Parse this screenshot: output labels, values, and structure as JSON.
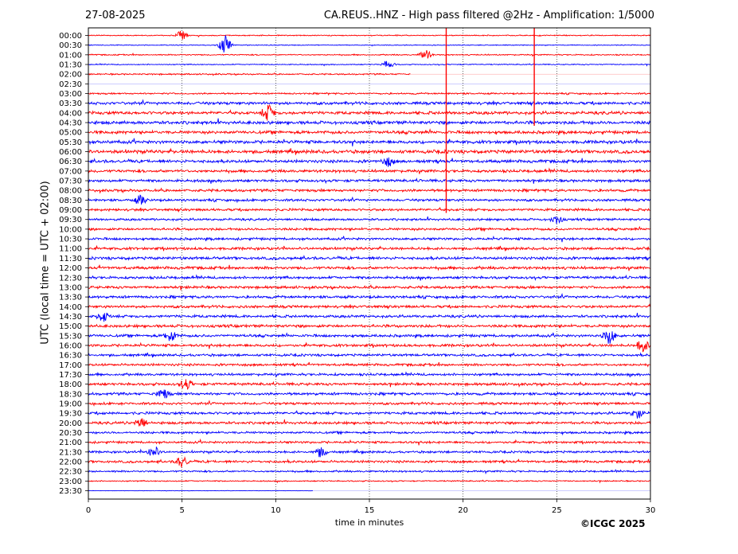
{
  "header": {
    "date": "27-08-2025",
    "title": "CA.REUS..HNZ - High pass filtered @2Hz - Amplification: 1/5000"
  },
  "footer": {
    "copyright": "©ICGC 2025"
  },
  "chart_data": {
    "type": "line",
    "title": "CA.REUS..HNZ - High pass filtered @2Hz - Amplification: 1/5000",
    "xlabel": "time in minutes",
    "ylabel": "UTC (local time = UTC + 02:00)",
    "xlim": [
      0,
      30
    ],
    "x_ticks": [
      0,
      5,
      10,
      15,
      20,
      25,
      30
    ],
    "grid": "vertical dotted lines at 5-minute intervals",
    "trace_colors": [
      "#ff0000",
      "#0000ff"
    ],
    "rows": [
      "00:00",
      "00:30",
      "01:00",
      "01:30",
      "02:00",
      "02:30",
      "03:00",
      "03:30",
      "04:00",
      "04:30",
      "05:00",
      "05:30",
      "06:00",
      "06:30",
      "07:00",
      "07:30",
      "08:00",
      "08:30",
      "09:00",
      "09:30",
      "10:00",
      "10:30",
      "11:00",
      "11:30",
      "12:00",
      "12:30",
      "13:00",
      "13:30",
      "14:00",
      "14:30",
      "15:00",
      "15:30",
      "16:00",
      "16:30",
      "17:00",
      "17:30",
      "18:00",
      "18:30",
      "19:00",
      "19:30",
      "20:00",
      "20:30",
      "21:00",
      "21:30",
      "22:00",
      "22:30",
      "23:00",
      "23:30"
    ],
    "row_noise_level": [
      0.5,
      0.4,
      0.6,
      0.5,
      0.7,
      0.0,
      0.8,
      1.4,
      1.5,
      1.6,
      1.5,
      1.6,
      1.7,
      1.5,
      1.4,
      1.3,
      1.3,
      1.2,
      1.2,
      1.1,
      1.2,
      1.2,
      1.3,
      1.4,
      1.4,
      1.3,
      1.3,
      1.3,
      1.3,
      1.3,
      1.4,
      1.3,
      1.3,
      1.2,
      1.2,
      1.2,
      1.3,
      1.3,
      1.2,
      1.3,
      1.3,
      1.1,
      1.1,
      1.1,
      1.2,
      0.9,
      0.6,
      0.2
    ],
    "row_data_end_minute": [
      30,
      30,
      30,
      30,
      17.2,
      0,
      30,
      30,
      30,
      30,
      30,
      30,
      30,
      30,
      30,
      30,
      30,
      30,
      30,
      30,
      30,
      30,
      30,
      30,
      30,
      30,
      30,
      30,
      30,
      30,
      30,
      30,
      30,
      30,
      30,
      30,
      30,
      30,
      30,
      30,
      30,
      30,
      30,
      30,
      30,
      30,
      30,
      12
    ],
    "events": [
      {
        "row": "00:00",
        "minute": 5.0,
        "amp": 1.3
      },
      {
        "row": "00:30",
        "minute": 7.3,
        "amp": 2.5
      },
      {
        "row": "01:00",
        "minute": 18.0,
        "amp": 1.2
      },
      {
        "row": "01:30",
        "minute": 16.0,
        "amp": 1.0
      },
      {
        "row": "04:00",
        "minute": 9.6,
        "amp": 2.0
      },
      {
        "row": "06:30",
        "minute": 16.0,
        "amp": 1.2
      },
      {
        "row": "08:30",
        "minute": 2.8,
        "amp": 1.2
      },
      {
        "row": "09:30",
        "minute": 25.0,
        "amp": 1.0
      },
      {
        "row": "14:30",
        "minute": 0.8,
        "amp": 1.3
      },
      {
        "row": "15:30",
        "minute": 4.4,
        "amp": 1.5
      },
      {
        "row": "15:30",
        "minute": 27.8,
        "amp": 2.0
      },
      {
        "row": "16:00",
        "minute": 29.6,
        "amp": 1.6
      },
      {
        "row": "18:00",
        "minute": 5.2,
        "amp": 1.4
      },
      {
        "row": "18:30",
        "minute": 4.0,
        "amp": 1.3
      },
      {
        "row": "19:30",
        "minute": 29.3,
        "amp": 1.3
      },
      {
        "row": "20:00",
        "minute": 2.8,
        "amp": 1.4
      },
      {
        "row": "21:30",
        "minute": 3.5,
        "amp": 1.6
      },
      {
        "row": "21:30",
        "minute": 12.4,
        "amp": 1.2
      },
      {
        "row": "22:00",
        "minute": 5.0,
        "amp": 1.4
      }
    ],
    "spikes": [
      {
        "minute": 19.1,
        "from_row": "00:00",
        "to_row": "09:00"
      },
      {
        "minute": 23.8,
        "from_row": "00:00",
        "to_row": "04:30"
      }
    ]
  }
}
